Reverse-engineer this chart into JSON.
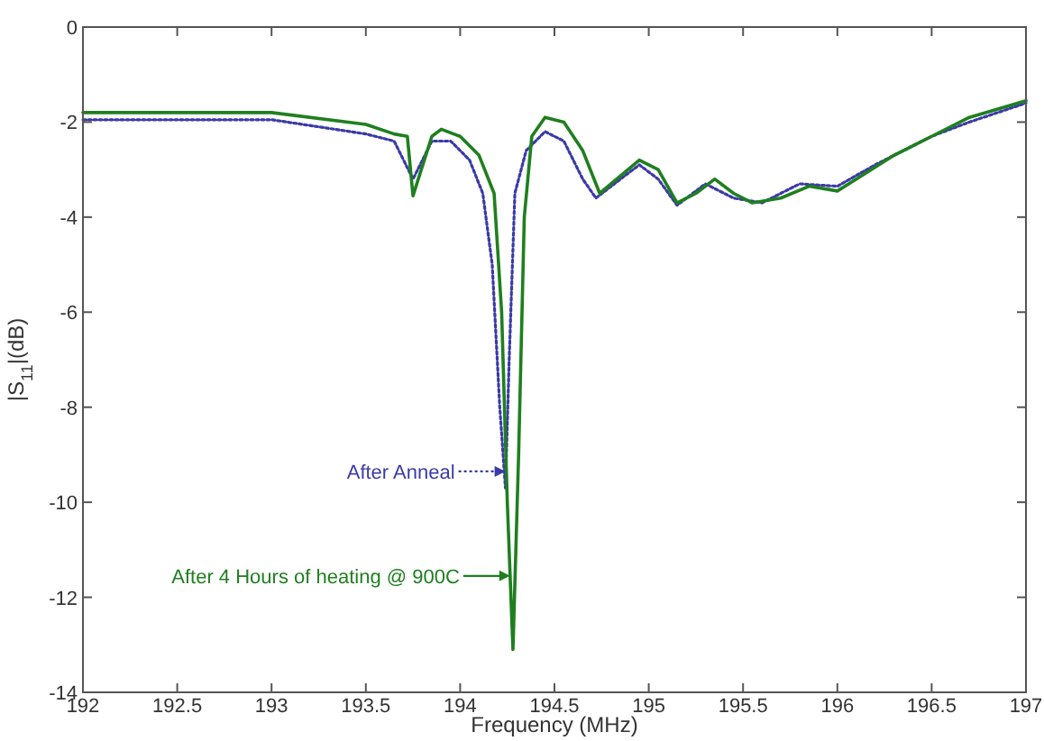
{
  "chart_data": {
    "type": "line",
    "xlabel": "Frequency (MHz)",
    "ylabel": "|S$_{11}$|(dB)",
    "xlim": [
      192,
      197
    ],
    "xticks": [
      192,
      192.5,
      193,
      193.5,
      194,
      194.5,
      195,
      195.5,
      196,
      196.5,
      197
    ],
    "ylim": [
      -14,
      0
    ],
    "yticks": [
      -14,
      -12,
      -10,
      -8,
      -6,
      -4,
      -2,
      0
    ],
    "grid": false,
    "series": [
      {
        "color": "#3a3aa8",
        "line_style": "dotted",
        "x": [
          192,
          192.5,
          193,
          193.5,
          193.65,
          193.75,
          193.85,
          193.95,
          194.05,
          194.12,
          194.17,
          194.21,
          194.24,
          194.26,
          194.29,
          194.35,
          194.45,
          194.55,
          194.65,
          194.72,
          194.85,
          194.95,
          195.05,
          195.15,
          195.3,
          195.45,
          195.6,
          195.8,
          196,
          196.2,
          196.5,
          196.7,
          197
        ],
        "values": [
          -1.95,
          -1.95,
          -1.95,
          -2.25,
          -2.4,
          -3.2,
          -2.4,
          -2.4,
          -2.8,
          -3.5,
          -5,
          -8,
          -9.7,
          -7,
          -3.5,
          -2.6,
          -2.2,
          -2.4,
          -3.2,
          -3.6,
          -3.2,
          -2.9,
          -3.2,
          -3.75,
          -3.3,
          -3.6,
          -3.7,
          -3.3,
          -3.35,
          -2.9,
          -2.3,
          -2,
          -1.6
        ]
      },
      {
        "color": "#1f7f1f",
        "line_style": "solid",
        "x": [
          192,
          192.5,
          193,
          193.5,
          193.65,
          193.72,
          193.75,
          193.85,
          193.9,
          194,
          194.1,
          194.18,
          194.22,
          194.25,
          194.28,
          194.31,
          194.34,
          194.38,
          194.45,
          194.55,
          194.65,
          194.74,
          194.8,
          194.95,
          195.05,
          195.15,
          195.25,
          195.35,
          195.45,
          195.55,
          195.7,
          195.85,
          196,
          196.1,
          196.3,
          196.5,
          196.7,
          197
        ],
        "values": [
          -1.8,
          -1.8,
          -1.8,
          -2.05,
          -2.25,
          -2.3,
          -3.55,
          -2.3,
          -2.15,
          -2.3,
          -2.7,
          -3.5,
          -6,
          -10,
          -13.1,
          -9,
          -4,
          -2.3,
          -1.9,
          -2,
          -2.6,
          -3.5,
          -3.3,
          -2.8,
          -3,
          -3.7,
          -3.5,
          -3.2,
          -3.5,
          -3.7,
          -3.6,
          -3.35,
          -3.45,
          -3.2,
          -2.7,
          -2.3,
          -1.9,
          -1.55
        ]
      }
    ],
    "annotations": [
      {
        "text": "After Anneal",
        "x": 194.24,
        "y": -9.35
      },
      {
        "text": "After 4 Hours of heating @ 900C",
        "x": 194.265,
        "y": -11.55
      }
    ]
  }
}
